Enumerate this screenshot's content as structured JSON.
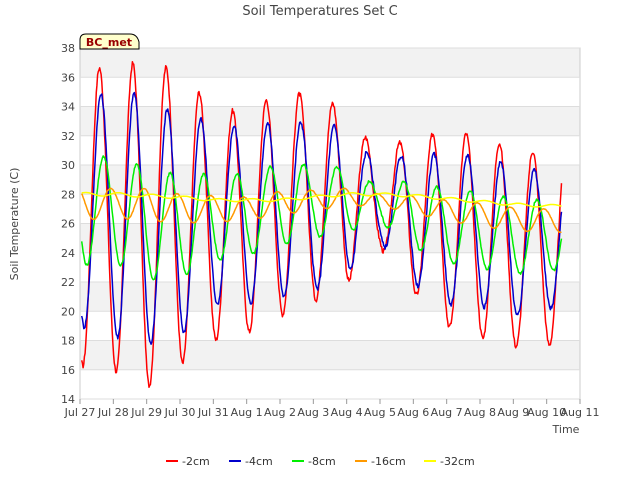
{
  "chart_data": {
    "type": "line",
    "title": "Soil Temperatures Set C",
    "xlabel": "Time",
    "ylabel": "Soil Temperature (C)",
    "ylim": [
      14,
      38
    ],
    "yticks": [
      14,
      16,
      18,
      20,
      22,
      24,
      26,
      28,
      30,
      32,
      34,
      36,
      38
    ],
    "xlim": [
      0,
      15
    ],
    "xticks": [
      0,
      1,
      2,
      3,
      4,
      5,
      6,
      7,
      8,
      9,
      10,
      11,
      12,
      13,
      14,
      15
    ],
    "xtick_labels": [
      "Jul 27",
      "Jul 28",
      "Jul 29",
      "Jul 30",
      "Jul 31",
      "Aug 1",
      "Aug 2",
      "Aug 3",
      "Aug 4",
      "Aug 5",
      "Aug 6",
      "Aug 7",
      "Aug 8",
      "Aug 9",
      "Aug 10",
      "Aug 11"
    ],
    "x_data_end": 14.45,
    "grid": true,
    "legend": "bottom",
    "station_badge": "BC_met",
    "series": [
      {
        "name": "-2cm",
        "color": "#ff0000",
        "mean": [
          26.5,
          26.3,
          26.0,
          26.3,
          26.0,
          26.0,
          27.4,
          27.7,
          27.9,
          27.4,
          26.8,
          25.5,
          25.2,
          24.3,
          24.3
        ],
        "amp": [
          10.2,
          10.3,
          11.2,
          10.0,
          8.0,
          7.5,
          7.7,
          7.0,
          6.0,
          3.0,
          5.5,
          6.5,
          7.0,
          6.7,
          6.6
        ],
        "peak_hour": 14
      },
      {
        "name": "-4cm",
        "color": "#0000cc",
        "mean": [
          26.5,
          26.8,
          26.2,
          25.8,
          26.7,
          26.5,
          27.0,
          27.1,
          27.6,
          27.3,
          26.5,
          25.5,
          25.6,
          24.7,
          24.9
        ],
        "amp": [
          7.5,
          8.5,
          8.5,
          7.5,
          6.3,
          6.0,
          6.1,
          5.7,
          5.0,
          2.5,
          4.6,
          5.0,
          5.2,
          5.1,
          4.7
        ],
        "peak_hour": 15
      },
      {
        "name": "-8cm",
        "color": "#00ee00",
        "mean": [
          26.8,
          27.0,
          26.0,
          25.8,
          26.4,
          26.6,
          27.3,
          27.5,
          27.6,
          27.3,
          26.7,
          25.8,
          25.6,
          25.1,
          25.2
        ],
        "amp": [
          3.7,
          3.6,
          3.9,
          3.5,
          3.0,
          2.8,
          2.8,
          2.5,
          2.2,
          1.2,
          2.3,
          2.5,
          2.6,
          2.6,
          2.4
        ],
        "peak_hour": 17
      },
      {
        "name": "-16cm",
        "color": "#ff9900",
        "mean": [
          27.3,
          27.4,
          27.3,
          27.0,
          27.0,
          27.0,
          27.4,
          27.6,
          27.8,
          27.6,
          27.3,
          26.9,
          26.6,
          26.3,
          26.2
        ],
        "amp": [
          1.1,
          1.0,
          1.1,
          1.0,
          0.9,
          0.8,
          0.8,
          0.7,
          0.6,
          0.4,
          0.6,
          0.7,
          0.8,
          0.8,
          0.8
        ],
        "peak_hour": 22
      },
      {
        "name": "-32cm",
        "color": "#ffff00",
        "mean": [
          28.0,
          28.0,
          27.9,
          27.8,
          27.6,
          27.6,
          27.6,
          27.8,
          28.0,
          28.0,
          27.9,
          27.7,
          27.5,
          27.3,
          27.2
        ],
        "amp": [
          0.12,
          0.12,
          0.12,
          0.1,
          0.1,
          0.1,
          0.1,
          0.1,
          0.1,
          0.1,
          0.1,
          0.1,
          0.1,
          0.1,
          0.1
        ],
        "peak_hour": 4
      }
    ]
  }
}
